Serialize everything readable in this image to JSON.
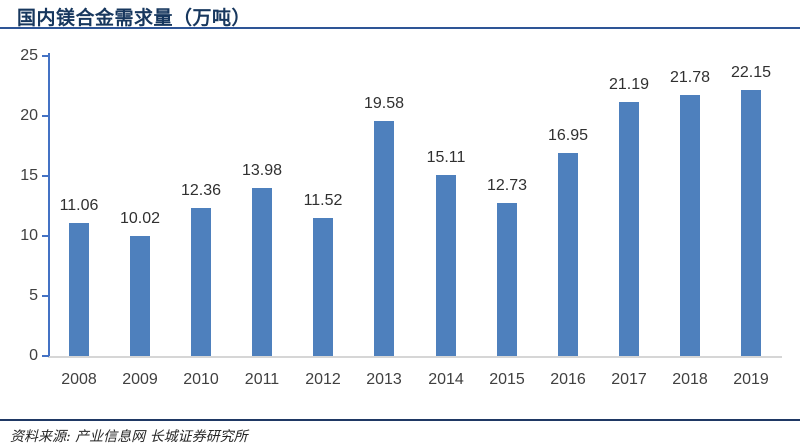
{
  "header": {
    "title": "国内镁合金需求量（万吨）"
  },
  "footer": {
    "source_note": "资料来源: 产业信息网 长城证券研究所"
  },
  "colors": {
    "bar": "#4E80BD",
    "y_axis": "#4472C4",
    "x_axis": "#D6D6D6",
    "title": "#17375E",
    "top_rule": "#2E5596",
    "bottom_rule": "#1F3864",
    "tick_label": "#404040",
    "value_label": "#303030"
  },
  "chart_data": {
    "type": "bar",
    "title": "国内镁合金需求量（万吨）",
    "categories": [
      "2008",
      "2009",
      "2010",
      "2011",
      "2012",
      "2013",
      "2014",
      "2015",
      "2016",
      "2017",
      "2018",
      "2019"
    ],
    "values": [
      11.06,
      10.02,
      12.36,
      13.98,
      11.52,
      19.58,
      15.11,
      12.73,
      16.95,
      21.19,
      21.78,
      22.15
    ],
    "data_labels": [
      "11.06",
      "10.02",
      "12.36",
      "13.98",
      "11.52",
      "19.58",
      "15.11",
      "12.73",
      "16.95",
      "21.19",
      "21.78",
      "22.15"
    ],
    "xlabel": "",
    "ylabel": "",
    "ylim": [
      0,
      25
    ],
    "yticks": [
      0,
      5,
      10,
      15,
      20,
      25
    ],
    "grid": false,
    "legend": "none",
    "bar_color": "#4E80BD"
  }
}
